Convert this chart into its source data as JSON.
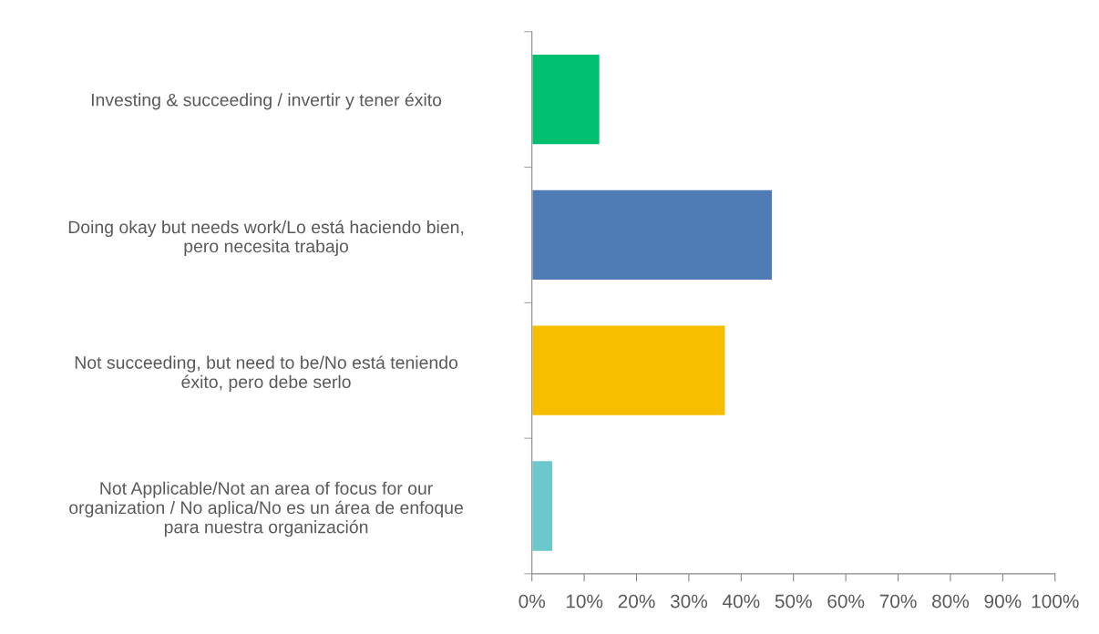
{
  "chart_data": {
    "type": "bar",
    "orientation": "horizontal",
    "categories": [
      "Investing & succeeding / invertir y tener éxito",
      "Doing okay but needs work/Lo está haciendo bien,\npero necesita trabajo",
      "Not succeeding, but need to be/No está teniendo\néxito, pero debe serlo",
      "Not Applicable/Not an area of focus for our\norganization / No aplica/No es un área de enfoque\npara nuestra organización"
    ],
    "values": [
      13,
      46,
      37,
      4
    ],
    "colors": [
      "#00bf6f",
      "#507cb6",
      "#f7be00",
      "#6bc8cd"
    ],
    "xlim": [
      0,
      100
    ],
    "xticks": [
      {
        "value": 0,
        "label": "0%"
      },
      {
        "value": 10,
        "label": "10%"
      },
      {
        "value": 20,
        "label": "20%"
      },
      {
        "value": 30,
        "label": "30%"
      },
      {
        "value": 40,
        "label": "40%"
      },
      {
        "value": 50,
        "label": "50%"
      },
      {
        "value": 60,
        "label": "60%"
      },
      {
        "value": 70,
        "label": "70%"
      },
      {
        "value": 80,
        "label": "80%"
      },
      {
        "value": 90,
        "label": "90%"
      },
      {
        "value": 100,
        "label": "100%"
      }
    ],
    "grid": false
  }
}
